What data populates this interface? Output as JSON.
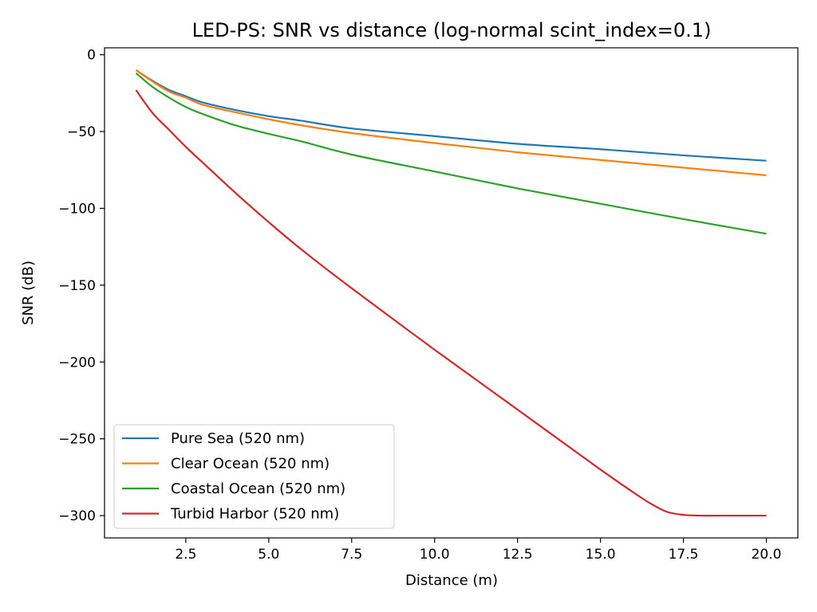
{
  "chart_data": {
    "type": "line",
    "title": "LED-PS: SNR vs distance (log-normal scint_index=0.1)",
    "xlabel": "Distance (m)",
    "ylabel": "SNR (dB)",
    "xlim": [
      0.05,
      20.95
    ],
    "ylim": [
      -314.5,
      4.5
    ],
    "xticks": [
      2.5,
      5.0,
      7.5,
      10.0,
      12.5,
      15.0,
      17.5,
      20.0
    ],
    "xtick_labels": [
      "2.5",
      "5.0",
      "7.5",
      "10.0",
      "12.5",
      "15.0",
      "17.5",
      "20.0"
    ],
    "yticks": [
      0,
      -50,
      -100,
      -150,
      -200,
      -250,
      -300
    ],
    "ytick_labels": [
      "0",
      "−50",
      "−100",
      "−150",
      "−200",
      "−250",
      "−300"
    ],
    "grid": false,
    "legend_position": "lower-left",
    "series": [
      {
        "name": "Pure Sea (520 nm)",
        "color": "#1f77b4",
        "x": [
          1,
          1.5,
          2,
          2.5,
          3,
          4,
          5,
          6,
          7.5,
          10,
          12.5,
          15,
          17.5,
          20
        ],
        "y": [
          -10,
          -17,
          -23,
          -27,
          -31,
          -36,
          -40,
          -43,
          -48,
          -53,
          -58,
          -61.5,
          -65.5,
          -69
        ]
      },
      {
        "name": "Clear Ocean (520 nm)",
        "color": "#ff7f0e",
        "x": [
          1,
          1.5,
          2,
          2.5,
          3,
          4,
          5,
          6,
          7.5,
          10,
          12.5,
          15,
          17.5,
          20
        ],
        "y": [
          -10,
          -17.5,
          -24,
          -28,
          -32.5,
          -37.5,
          -42,
          -46,
          -51,
          -57.5,
          -63.5,
          -68.5,
          -73.5,
          -78.5
        ]
      },
      {
        "name": "Coastal Ocean (520 nm)",
        "color": "#2ca02c",
        "x": [
          1,
          1.5,
          2,
          2.5,
          3,
          4,
          5,
          6,
          7.5,
          10,
          12.5,
          15,
          17.5,
          20
        ],
        "y": [
          -12,
          -21,
          -28,
          -34,
          -38.5,
          -46,
          -51.5,
          -56.5,
          -65,
          -76,
          -87,
          -97,
          -107,
          -116.5
        ]
      },
      {
        "name": "Turbid Harbor (520 nm)",
        "color": "#d62728",
        "x": [
          1,
          1.5,
          2,
          2.5,
          3,
          4,
          5,
          6,
          7.5,
          10,
          12.5,
          15,
          16,
          16.5,
          17,
          17.5,
          18,
          19,
          20
        ],
        "y": [
          -23,
          -38,
          -49,
          -60,
          -70,
          -90,
          -109,
          -127,
          -152,
          -192,
          -231,
          -270,
          -285,
          -292,
          -297.5,
          -299.5,
          -300,
          -300,
          -300
        ]
      }
    ]
  }
}
